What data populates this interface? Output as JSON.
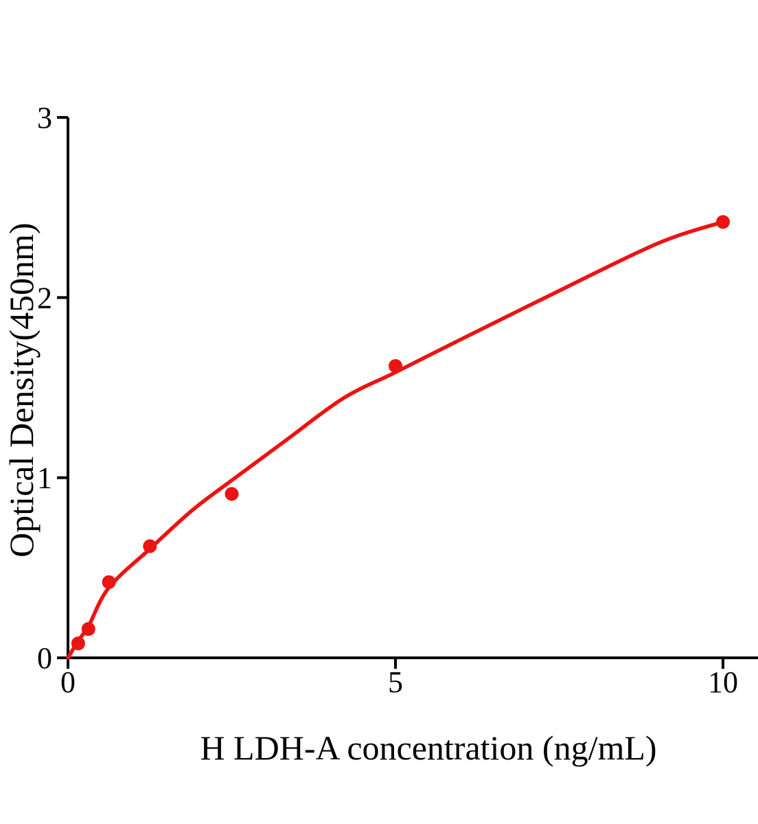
{
  "figure": {
    "background": "#ffffff"
  },
  "chart_data": {
    "type": "scatter",
    "title": "",
    "xlabel": "H LDH-A concentration (ng/mL)",
    "ylabel": "Optical Density(450nm)",
    "xlim": [
      0,
      10.5
    ],
    "ylim": [
      0,
      3
    ],
    "x_ticks": [
      0,
      5,
      10
    ],
    "y_ticks": [
      0,
      1,
      2,
      3
    ],
    "grid": false,
    "legend": "none",
    "colors": {
      "series_red": "#ec1313",
      "axis": "#000000",
      "text": "#000000"
    },
    "series": [
      {
        "name": "standards",
        "type": "scatter",
        "marker": "circle",
        "color": "#ec1313",
        "x": [
          0.156,
          0.312,
          0.625,
          1.25,
          2.5,
          5,
          10
        ],
        "y": [
          0.08,
          0.16,
          0.42,
          0.62,
          0.91,
          1.62,
          2.42
        ]
      },
      {
        "name": "fit-curve",
        "type": "line",
        "color": "#ec1313",
        "points": [
          [
            0,
            0
          ],
          [
            0.156,
            0.095
          ],
          [
            0.312,
            0.175
          ],
          [
            0.625,
            0.39
          ],
          [
            1.25,
            0.605
          ],
          [
            1.9,
            0.82
          ],
          [
            2.5,
            0.985
          ],
          [
            3.3,
            1.2
          ],
          [
            4.2,
            1.44
          ],
          [
            5,
            1.585
          ],
          [
            5.9,
            1.75
          ],
          [
            7.4,
            2.02
          ],
          [
            9,
            2.3
          ],
          [
            10,
            2.42
          ]
        ]
      }
    ]
  }
}
